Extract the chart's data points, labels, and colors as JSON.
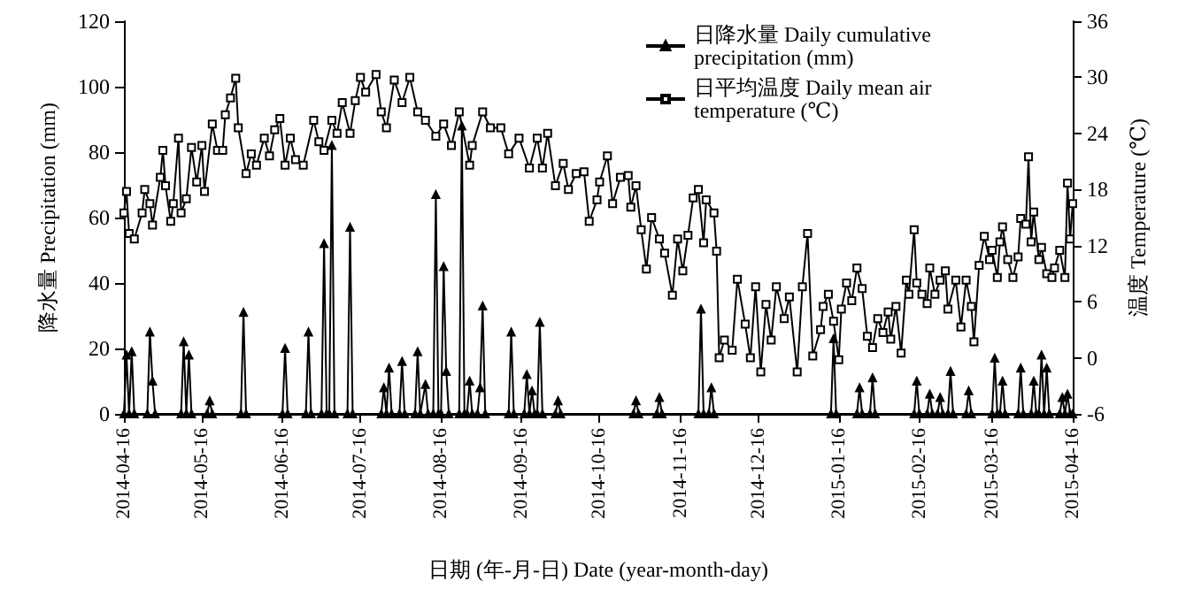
{
  "chart_data": {
    "type": "line",
    "xlabel": "日期 (年-月-日) Date (year-month-day)",
    "ylabel": "降水量 Precipitation (mm)",
    "y2label": "温度 Temperature (℃)",
    "xlim": [
      "2014-04-16",
      "2015-04-16"
    ],
    "xticks": [
      "2014-04-16",
      "2014-05-16",
      "2014-06-16",
      "2014-07-16",
      "2014-08-16",
      "2014-09-16",
      "2014-10-16",
      "2014-11-16",
      "2014-12-16",
      "2015-01-16",
      "2015-02-16",
      "2015-03-16",
      "2015-04-16"
    ],
    "ylim": [
      0,
      120
    ],
    "yticks": [
      0,
      20,
      40,
      60,
      80,
      100,
      120
    ],
    "y2lim": [
      -6,
      36
    ],
    "y2ticks": [
      -6,
      0,
      6,
      12,
      18,
      24,
      30,
      36
    ],
    "grid": false,
    "legend": "top right",
    "line_style": "solid",
    "series": [
      {
        "name": "日降水量 Daily cumulative precipitation (mm)",
        "color": "#000000",
        "marker": "triangle",
        "x": [
          "2014-04-16",
          "2014-04-17",
          "2014-04-18",
          "2014-04-19",
          "2014-04-20",
          "2014-04-25",
          "2014-04-26",
          "2014-04-27",
          "2014-04-28",
          "2014-05-08",
          "2014-05-09",
          "2014-05-10",
          "2014-05-11",
          "2014-05-12",
          "2014-05-18",
          "2014-05-19",
          "2014-05-20",
          "2014-05-31",
          "2014-06-01",
          "2014-06-02",
          "2014-06-16",
          "2014-06-17",
          "2014-06-18",
          "2014-06-25",
          "2014-06-26",
          "2014-06-27",
          "2014-07-01",
          "2014-07-02",
          "2014-07-03",
          "2014-07-04",
          "2014-07-05",
          "2014-07-06",
          "2014-07-11",
          "2014-07-12",
          "2014-07-13",
          "2014-07-24",
          "2014-07-25",
          "2014-07-26",
          "2014-07-27",
          "2014-07-28",
          "2014-07-31",
          "2014-08-01",
          "2014-08-02",
          "2014-08-06",
          "2014-08-07",
          "2014-08-08",
          "2014-08-10",
          "2014-08-11",
          "2014-08-13",
          "2014-08-14",
          "2014-08-15",
          "2014-08-16",
          "2014-08-17",
          "2014-08-18",
          "2014-08-19",
          "2014-08-23",
          "2014-08-24",
          "2014-08-25",
          "2014-08-26",
          "2014-08-27",
          "2014-08-28",
          "2014-08-30",
          "2014-08-31",
          "2014-09-01",
          "2014-09-02",
          "2014-09-11",
          "2014-09-12",
          "2014-09-13",
          "2014-09-17",
          "2014-09-18",
          "2014-09-19",
          "2014-09-20",
          "2014-09-21",
          "2014-09-22",
          "2014-09-23",
          "2014-09-24",
          "2014-09-29",
          "2014-09-30",
          "2014-10-01",
          "2014-10-29",
          "2014-10-30",
          "2014-10-31",
          "2014-11-07",
          "2014-11-08",
          "2014-11-09",
          "2014-11-23",
          "2014-11-24",
          "2014-11-25",
          "2014-11-27",
          "2014-11-28",
          "2014-11-29",
          "2015-01-13",
          "2015-01-14",
          "2015-01-15",
          "2015-01-23",
          "2015-01-24",
          "2015-01-25",
          "2015-01-28",
          "2015-01-29",
          "2015-01-30",
          "2015-02-14",
          "2015-02-15",
          "2015-02-16",
          "2015-02-19",
          "2015-02-20",
          "2015-02-21",
          "2015-02-23",
          "2015-02-24",
          "2015-02-25",
          "2015-02-27",
          "2015-02-28",
          "2015-03-01",
          "2015-03-06",
          "2015-03-07",
          "2015-03-08",
          "2015-03-16",
          "2015-03-17",
          "2015-03-18",
          "2015-03-19",
          "2015-03-20",
          "2015-03-21",
          "2015-03-26",
          "2015-03-27",
          "2015-03-28",
          "2015-03-31",
          "2015-04-01",
          "2015-04-02",
          "2015-04-03",
          "2015-04-04",
          "2015-04-05",
          "2015-04-06",
          "2015-04-07",
          "2015-04-11",
          "2015-04-12",
          "2015-04-13",
          "2015-04-14",
          "2015-04-15",
          "2015-04-16"
        ],
        "values": [
          0,
          18,
          0,
          19,
          0,
          0,
          25,
          10,
          0,
          0,
          22,
          0,
          18,
          0,
          0,
          4,
          0,
          0,
          31,
          0,
          0,
          20,
          0,
          0,
          25,
          0,
          0,
          52,
          0,
          0,
          82,
          0,
          0,
          57,
          0,
          0,
          8,
          0,
          14,
          0,
          0,
          16,
          0,
          0,
          19,
          0,
          9,
          0,
          0,
          67,
          0,
          0,
          45,
          13,
          0,
          0,
          88,
          0,
          0,
          10,
          0,
          0,
          8,
          33,
          0,
          0,
          25,
          0,
          0,
          12,
          0,
          7,
          0,
          0,
          28,
          0,
          0,
          4,
          0,
          0,
          4,
          0,
          0,
          5,
          0,
          0,
          32,
          0,
          0,
          8,
          0,
          0,
          23,
          0,
          0,
          8,
          0,
          0,
          11,
          0,
          0,
          10,
          0,
          0,
          6,
          0,
          0,
          5,
          0,
          0,
          13,
          0,
          0,
          7,
          0,
          0,
          17,
          0,
          0,
          10,
          0,
          0,
          14,
          0,
          0,
          10,
          0,
          0,
          18,
          0,
          14,
          0,
          0,
          5,
          0,
          6,
          0,
          0
        ]
      },
      {
        "name": "日平均温度 Daily mean air temperature (℃)",
        "color": "#000000",
        "marker": "square",
        "axis": "y2",
        "x": [
          "2014-04-16",
          "2014-04-17",
          "2014-04-18",
          "2014-04-20",
          "2014-04-23",
          "2014-04-24",
          "2014-04-26",
          "2014-04-27",
          "2014-04-30",
          "2014-05-01",
          "2014-05-02",
          "2014-05-04",
          "2014-05-05",
          "2014-05-07",
          "2014-05-08",
          "2014-05-10",
          "2014-05-12",
          "2014-05-14",
          "2014-05-16",
          "2014-05-17",
          "2014-05-20",
          "2014-05-22",
          "2014-05-24",
          "2014-05-25",
          "2014-05-27",
          "2014-05-29",
          "2014-05-30",
          "2014-06-02",
          "2014-06-04",
          "2014-06-06",
          "2014-06-09",
          "2014-06-11",
          "2014-06-13",
          "2014-06-15",
          "2014-06-17",
          "2014-06-19",
          "2014-06-21",
          "2014-06-24",
          "2014-06-28",
          "2014-06-30",
          "2014-07-02",
          "2014-07-05",
          "2014-07-07",
          "2014-07-09",
          "2014-07-12",
          "2014-07-14",
          "2014-07-16",
          "2014-07-18",
          "2014-07-22",
          "2014-07-24",
          "2014-07-26",
          "2014-07-29",
          "2014-08-01",
          "2014-08-04",
          "2014-08-07",
          "2014-08-10",
          "2014-08-14",
          "2014-08-17",
          "2014-08-20",
          "2014-08-23",
          "2014-08-27",
          "2014-08-28",
          "2014-09-01",
          "2014-09-04",
          "2014-09-08",
          "2014-09-11",
          "2014-09-15",
          "2014-09-19",
          "2014-09-22",
          "2014-09-24",
          "2014-09-26",
          "2014-09-29",
          "2014-10-02",
          "2014-10-04",
          "2014-10-07",
          "2014-10-10",
          "2014-10-12",
          "2014-10-15",
          "2014-10-16",
          "2014-10-19",
          "2014-10-21",
          "2014-10-24",
          "2014-10-27",
          "2014-10-28",
          "2014-10-30",
          "2014-11-01",
          "2014-11-03",
          "2014-11-05",
          "2014-11-08",
          "2014-11-10",
          "2014-11-13",
          "2014-11-15",
          "2014-11-17",
          "2014-11-19",
          "2014-11-21",
          "2014-11-23",
          "2014-11-25",
          "2014-11-26",
          "2014-11-29",
          "2014-11-30",
          "2014-12-01",
          "2014-12-03",
          "2014-12-06",
          "2014-12-08",
          "2014-12-11",
          "2014-12-13",
          "2014-12-15",
          "2014-12-17",
          "2014-12-19",
          "2014-12-21",
          "2014-12-23",
          "2014-12-26",
          "2014-12-28",
          "2014-12-31",
          "2015-01-02",
          "2015-01-04",
          "2015-01-06",
          "2015-01-09",
          "2015-01-10",
          "2015-01-12",
          "2015-01-14",
          "2015-01-16",
          "2015-01-17",
          "2015-01-19",
          "2015-01-21",
          "2015-01-23",
          "2015-01-25",
          "2015-01-27",
          "2015-01-29",
          "2015-01-31",
          "2015-02-02",
          "2015-02-04",
          "2015-02-05",
          "2015-02-07",
          "2015-02-09",
          "2015-02-11",
          "2015-02-12",
          "2015-02-14",
          "2015-02-15",
          "2015-02-17",
          "2015-02-19",
          "2015-02-20",
          "2015-02-22",
          "2015-02-24",
          "2015-02-26",
          "2015-02-27",
          "2015-03-02",
          "2015-03-04",
          "2015-03-06",
          "2015-03-08",
          "2015-03-09",
          "2015-03-11",
          "2015-03-13",
          "2015-03-15",
          "2015-03-16",
          "2015-03-18",
          "2015-03-19",
          "2015-03-20",
          "2015-03-22",
          "2015-03-24",
          "2015-03-26",
          "2015-03-27",
          "2015-03-29",
          "2015-03-30",
          "2015-03-31",
          "2015-04-01",
          "2015-04-03",
          "2015-04-04",
          "2015-04-06",
          "2015-04-08",
          "2015-04-09",
          "2015-04-11",
          "2015-04-13",
          "2015-04-14",
          "2015-04-15",
          "2015-04-16"
        ],
        "values": [
          15.5,
          17.8,
          13.3,
          12.7,
          15.5,
          18,
          16.5,
          14.2,
          19.3,
          22.2,
          18.4,
          14.6,
          16.5,
          23.5,
          15.5,
          17,
          22.5,
          18.8,
          22.7,
          17.8,
          25,
          22.2,
          22.2,
          26,
          27.8,
          29.9,
          24.6,
          19.7,
          21.8,
          20.6,
          23.5,
          21.6,
          24.4,
          25.6,
          20.6,
          23.5,
          21.2,
          20.6,
          25.4,
          23.1,
          22.2,
          25.4,
          24,
          27.3,
          24,
          27.5,
          30,
          28.4,
          30.3,
          26.3,
          24.6,
          29.7,
          27.3,
          30,
          26.3,
          25.4,
          23.7,
          25,
          22.7,
          26.3,
          20.6,
          22.7,
          26.3,
          24.6,
          24.6,
          21.8,
          23.5,
          20.3,
          23.5,
          20.3,
          24,
          18.4,
          20.8,
          18,
          19.7,
          19.9,
          14.6,
          16.9,
          18.8,
          21.6,
          16.5,
          19.3,
          19.5,
          16.1,
          18.4,
          13.7,
          9.5,
          15,
          12.7,
          11.2,
          6.7,
          12.7,
          9.3,
          13.1,
          17.1,
          18,
          12.3,
          16.9,
          15.5,
          11.4,
          0,
          1.9,
          0.8,
          8.4,
          3.6,
          0,
          7.6,
          -1.5,
          5.7,
          1.9,
          7.6,
          4.2,
          6.5,
          -1.5,
          7.6,
          13.3,
          0.2,
          3,
          5.5,
          6.8,
          3.9,
          -0.2,
          5.2,
          8,
          6.1,
          9.6,
          7.4,
          2.3,
          1.1,
          4.2,
          2.7,
          4.9,
          2,
          5.5,
          0.5,
          8.3,
          6.8,
          13.7,
          8,
          6.8,
          5.8,
          9.6,
          6.8,
          8.3,
          9.3,
          5.2,
          8.3,
          3.3,
          8.3,
          5.5,
          1.7,
          9.9,
          13,
          10.5,
          11.5,
          8.6,
          12.4,
          14,
          10.5,
          8.6,
          10.8,
          14.9,
          14.3,
          21.5,
          12.4,
          15.6,
          10.5,
          11.8,
          9,
          8.6,
          9.6,
          11.5,
          8.6,
          18.7,
          12.7,
          16.5
        ]
      }
    ]
  }
}
